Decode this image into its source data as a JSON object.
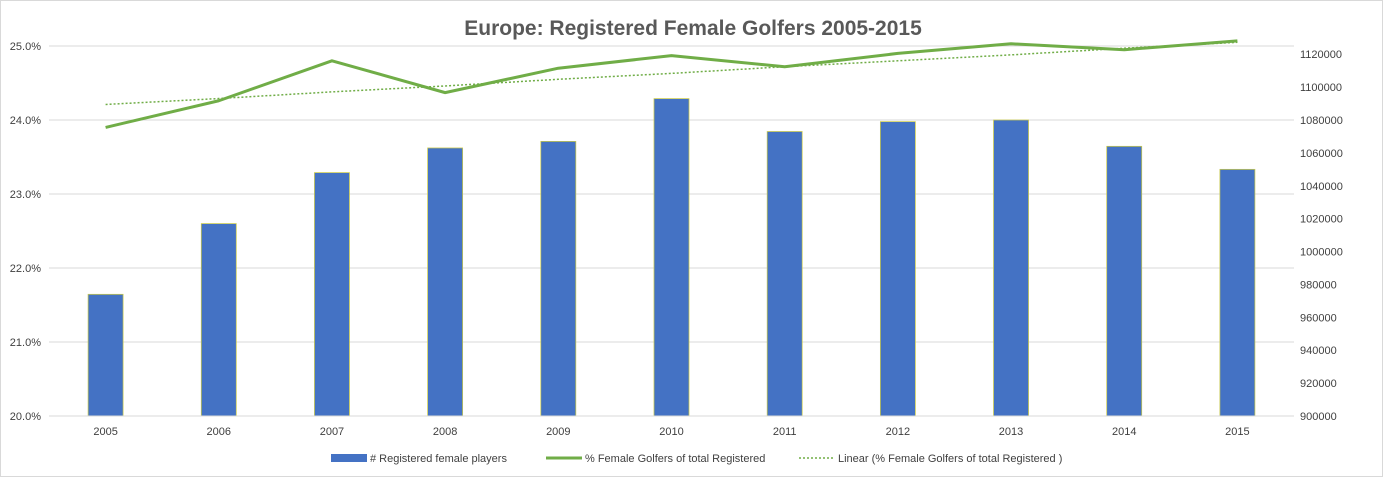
{
  "colors": {
    "bar": "#4472c4",
    "bar_edge": "#c9c94a",
    "line": "#70ad47",
    "grid": "#d9d9d9",
    "text": "#404040",
    "title": "#595959"
  },
  "chart_data": {
    "type": "bar",
    "title": "Europe: Registered Female Golfers 2005-2015",
    "xlabel": "",
    "ylabel": "",
    "categories": [
      "2005",
      "2006",
      "2007",
      "2008",
      "2009",
      "2010",
      "2011",
      "2012",
      "2013",
      "2014",
      "2015"
    ],
    "grid": true,
    "legend_position": "bottom",
    "y_left": {
      "min": 20.0,
      "max": 25.0,
      "ticks": [
        20.0,
        21.0,
        22.0,
        23.0,
        24.0,
        25.0
      ],
      "tick_labels": [
        "20.0%",
        "21.0%",
        "22.0%",
        "23.0%",
        "24.0%",
        "25.0%"
      ]
    },
    "y_right": {
      "min": 900000,
      "max": 1125000,
      "ticks": [
        900000,
        920000,
        940000,
        960000,
        980000,
        1000000,
        1020000,
        1040000,
        1060000,
        1080000,
        1100000,
        1120000
      ],
      "tick_labels": [
        "900000",
        "920000",
        "940000",
        "960000",
        "980000",
        "1000000",
        "1020000",
        "1040000",
        "1060000",
        "1080000",
        "1100000",
        "1120000"
      ]
    },
    "series": [
      {
        "name": "# Registered female players",
        "type": "bar",
        "axis": "right",
        "values": [
          974000,
          1017000,
          1048000,
          1063000,
          1067000,
          1093000,
          1073000,
          1079000,
          1080000,
          1064000,
          1050000
        ]
      },
      {
        "name": "% Female Golfers of total Registered",
        "type": "line",
        "axis": "left",
        "values": [
          23.9,
          24.26,
          24.8,
          24.37,
          24.7,
          24.87,
          24.72,
          24.9,
          25.03,
          24.95,
          25.07
        ]
      },
      {
        "name": "Linear (% Female Golfers of total Registered )",
        "type": "trendline",
        "axis": "left",
        "values": [
          24.21,
          24.29,
          24.38,
          24.46,
          24.55,
          24.63,
          24.72,
          24.8,
          24.88,
          24.97,
          25.05
        ]
      }
    ]
  }
}
